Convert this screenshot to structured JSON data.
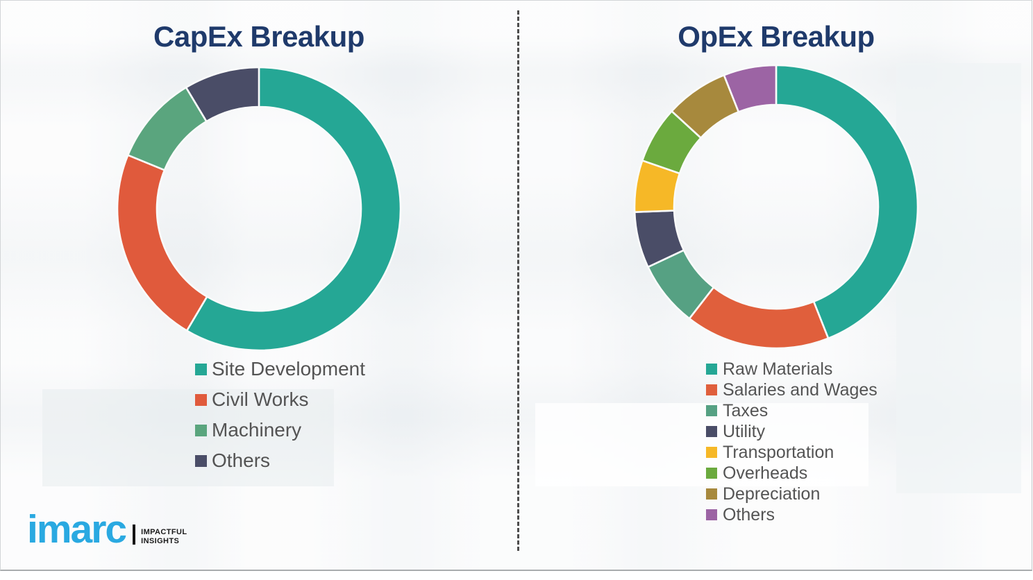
{
  "chart_data": [
    {
      "type": "pie",
      "variant": "donut",
      "title": "CapEx Breakup",
      "labels": [
        "Site Development",
        "Civil Works",
        "Machinery",
        "Others"
      ],
      "values": [
        58.5,
        22.7,
        10.2,
        8.6
      ],
      "value_format": "percent-estimated-from-arc-angles",
      "colors": [
        "#25a795",
        "#e05a3c",
        "#5aa57e",
        "#4a4d67"
      ],
      "start_angle_deg": 0,
      "direction": "clockwise",
      "hole_radius_ratio": 0.72,
      "legend_position": "below-left",
      "data_labels_shown": false
    },
    {
      "type": "pie",
      "variant": "donut",
      "title": "OpEx Breakup",
      "labels": [
        "Raw Materials",
        "Salaries and Wages",
        "Taxes",
        "Utility",
        "Transportation",
        "Overheads",
        "Depreciation",
        "Others"
      ],
      "values": [
        44.0,
        16.5,
        7.5,
        6.4,
        5.9,
        6.5,
        7.2,
        6.0
      ],
      "value_format": "percent-estimated-from-arc-angles",
      "colors": [
        "#25a795",
        "#e05f3c",
        "#56a183",
        "#4a4d67",
        "#f6b827",
        "#6baa3e",
        "#a7893d",
        "#9c64a4"
      ],
      "start_angle_deg": 0,
      "direction": "clockwise",
      "hole_radius_ratio": 0.72,
      "legend_position": "below-left",
      "data_labels_shown": false
    }
  ],
  "logo": {
    "brand": "imarc",
    "tagline_line1": "IMPACTFUL",
    "tagline_line2": "INSIGHTS",
    "brand_color": "#2aa9e1"
  },
  "style_colors": {
    "title_navy": "#1f3a6b",
    "legend_text": "#545454",
    "divider_gray": "#4d4d4d",
    "slide_background": "#f3f4f6"
  }
}
